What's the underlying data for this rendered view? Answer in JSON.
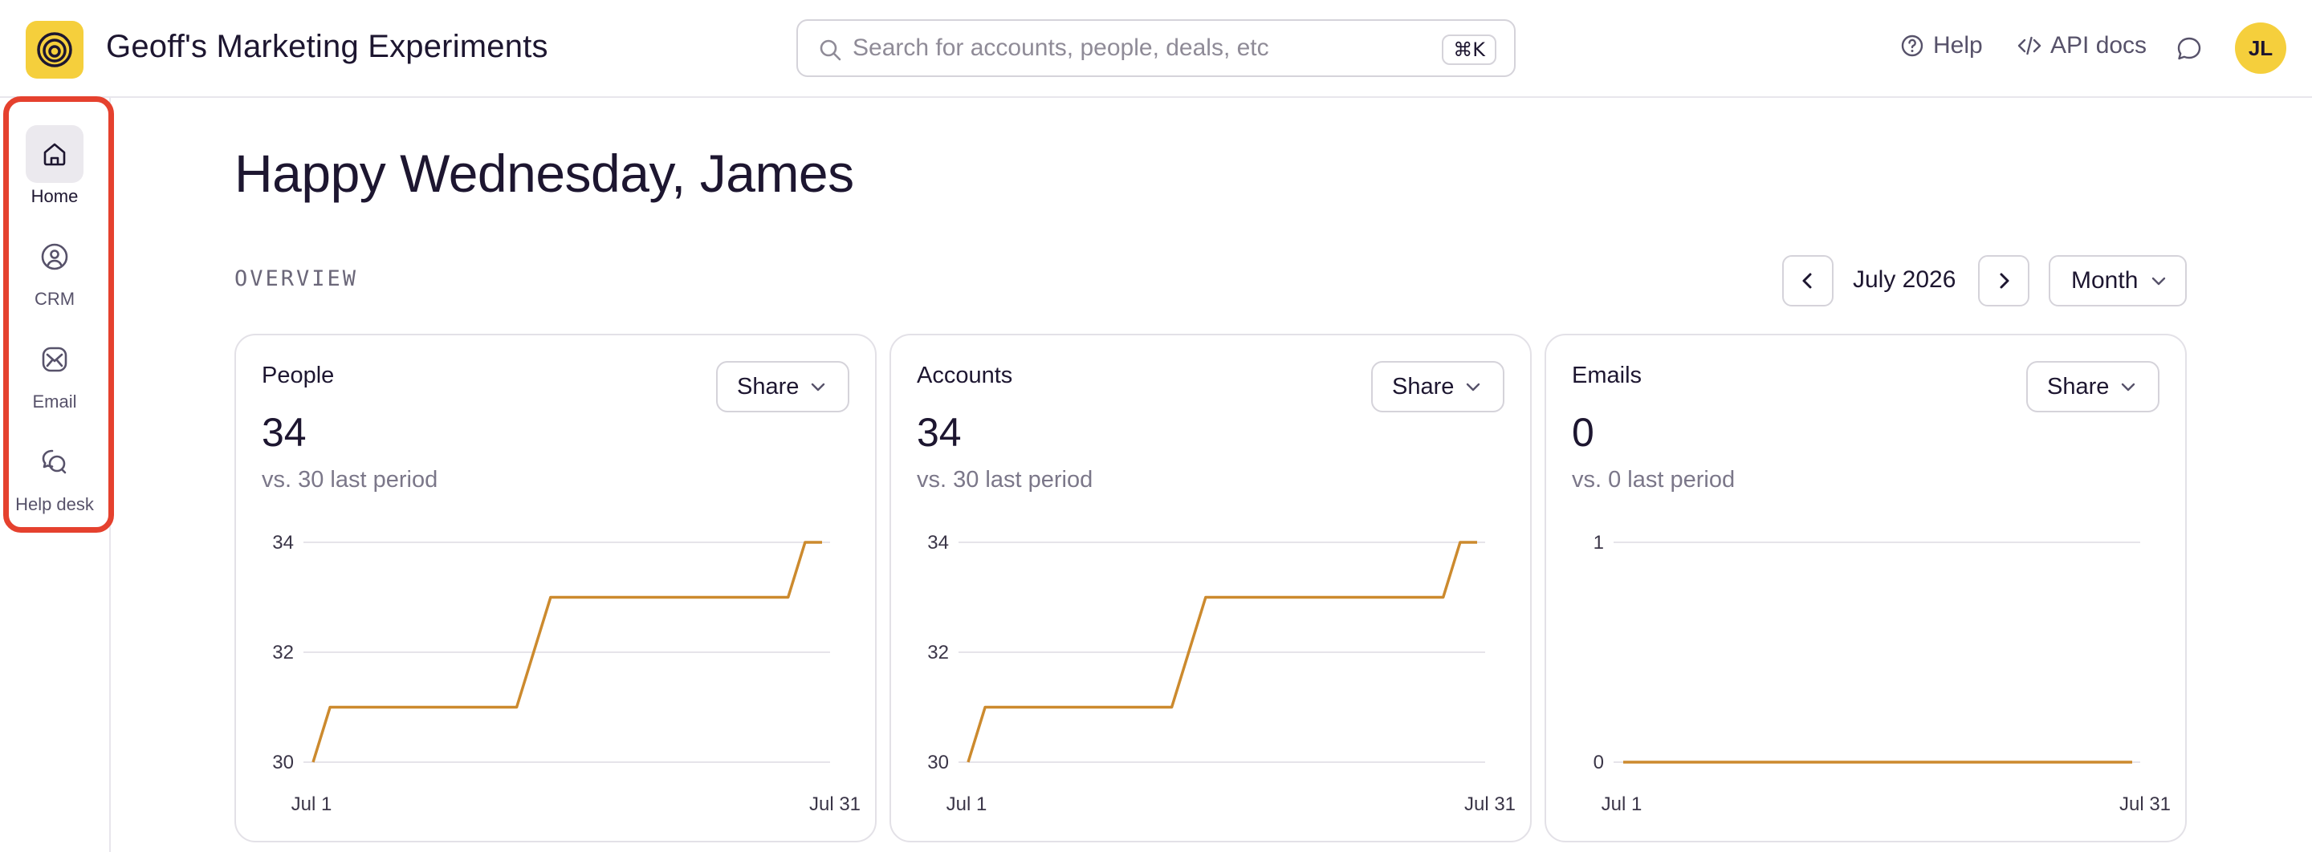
{
  "app": {
    "title": "Geoff's Marketing Experiments",
    "brand_color": "#f5cf3c",
    "logo_icon": "concentric-circles-logo-icon"
  },
  "search": {
    "placeholder": "Search for accounts, people, deals, etc",
    "value": "",
    "shortcut": "⌘K"
  },
  "header": {
    "help_label": "Help",
    "api_docs_label": "API docs",
    "avatar_initials": "JL"
  },
  "sidebar": {
    "items": [
      {
        "label": "Home",
        "icon": "home-icon",
        "active": true
      },
      {
        "label": "CRM",
        "icon": "person-circle-icon",
        "active": false
      },
      {
        "label": "Email",
        "icon": "envelope-icon",
        "active": false
      },
      {
        "label": "Help desk",
        "icon": "chat-bubbles-icon",
        "active": false
      }
    ],
    "highlight_color": "#e5412e"
  },
  "main": {
    "greeting": "Happy Wednesday, James",
    "section_label": "OVERVIEW",
    "period_label": "July 2026",
    "range_label": "Month"
  },
  "cards": [
    {
      "title": "People",
      "value": "34",
      "comparison": "vs. 30 last period",
      "share_label": "Share"
    },
    {
      "title": "Accounts",
      "value": "34",
      "comparison": "vs. 30 last period",
      "share_label": "Share"
    },
    {
      "title": "Emails",
      "value": "0",
      "comparison": "vs. 0 last period",
      "share_label": "Share"
    }
  ],
  "chart_data": [
    {
      "type": "line",
      "x_labels": [
        "Jul 1",
        "Jul 31"
      ],
      "x_range": [
        1,
        31
      ],
      "y_ticks": [
        30,
        32,
        34
      ],
      "ylim": [
        30,
        34
      ],
      "line_color": "#cc8a2e",
      "series": [
        {
          "x": [
            1,
            2,
            13,
            15,
            29,
            30,
            31
          ],
          "y": [
            30,
            31,
            31,
            33,
            33,
            34,
            34
          ]
        }
      ]
    },
    {
      "type": "line",
      "x_labels": [
        "Jul 1",
        "Jul 31"
      ],
      "x_range": [
        1,
        31
      ],
      "y_ticks": [
        30,
        32,
        34
      ],
      "ylim": [
        30,
        34
      ],
      "line_color": "#cc8a2e",
      "series": [
        {
          "x": [
            1,
            2,
            13,
            15,
            29,
            30,
            31
          ],
          "y": [
            30,
            31,
            31,
            33,
            33,
            34,
            34
          ]
        }
      ]
    },
    {
      "type": "line",
      "x_labels": [
        "Jul 1",
        "Jul 31"
      ],
      "x_range": [
        1,
        31
      ],
      "y_ticks": [
        0,
        1
      ],
      "ylim": [
        0,
        1
      ],
      "line_color": "#cc8a2e",
      "series": [
        {
          "x": [
            1,
            31
          ],
          "y": [
            0,
            0
          ]
        }
      ]
    }
  ]
}
